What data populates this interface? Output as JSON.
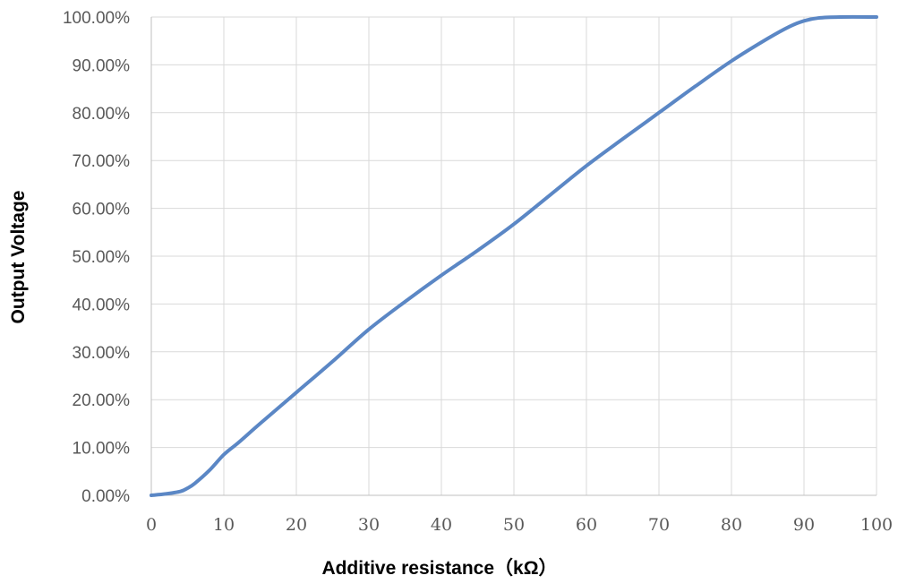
{
  "chart_data": {
    "type": "line",
    "title": "",
    "xlabel": "Additive resistance（kΩ）",
    "ylabel": "Output Voltage",
    "xlim": [
      0,
      100
    ],
    "ylim": [
      0,
      100
    ],
    "x_ticks": [
      "0",
      "10",
      "20",
      "30",
      "40",
      "50",
      "60",
      "70",
      "80",
      "90",
      "100"
    ],
    "y_ticks": [
      "0.00%",
      "10.00%",
      "20.00%",
      "30.00%",
      "40.00%",
      "50.00%",
      "60.00%",
      "70.00%",
      "80.00%",
      "90.00%",
      "100.00%"
    ],
    "grid": true,
    "legend": "none",
    "series": [
      {
        "color": "#5b87c5",
        "x": [
          0,
          2,
          4,
          5,
          6,
          8,
          10,
          12,
          15,
          20,
          25,
          30,
          35,
          40,
          45,
          50,
          55,
          60,
          65,
          70,
          75,
          80,
          85,
          88,
          90,
          92,
          95,
          100
        ],
        "y": [
          0,
          0.3,
          0.8,
          1.5,
          2.5,
          5.2,
          8.5,
          11,
          15,
          21.5,
          28,
          34.7,
          40.5,
          46,
          51.2,
          56.7,
          62.8,
          68.9,
          74.5,
          80,
          85.5,
          90.8,
          95.5,
          98,
          99.2,
          99.8,
          100,
          100
        ]
      }
    ]
  }
}
